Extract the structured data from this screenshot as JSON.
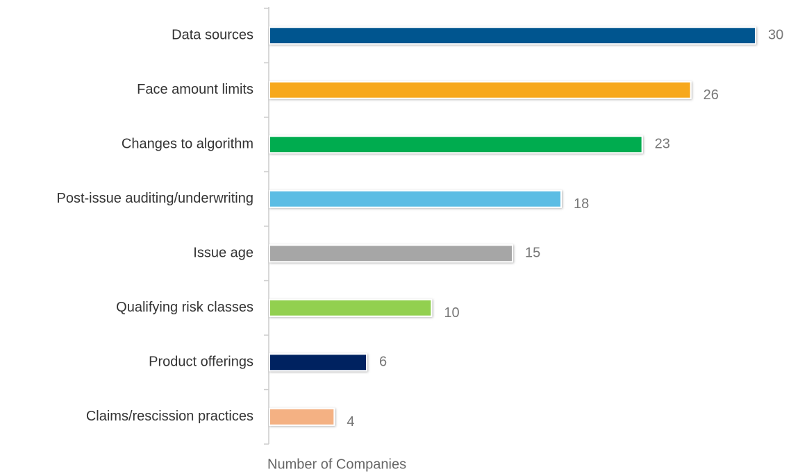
{
  "chart_data": {
    "type": "bar",
    "orientation": "horizontal",
    "x_label": "Number of Companies",
    "categories": [
      "Data sources",
      "Face amount limits",
      "Changes to algorithm",
      "Post-issue auditing/underwriting",
      "Issue age",
      "Qualifying risk classes",
      "Product offerings",
      "Claims/rescission practices"
    ],
    "values": [
      30,
      26,
      23,
      18,
      15,
      10,
      6,
      4
    ],
    "colors": [
      "#00558f",
      "#f7a81b",
      "#00ac4f",
      "#5bbde4",
      "#a6a6a6",
      "#92d050",
      "#002060",
      "#f4b183"
    ],
    "xlim": [
      0,
      30
    ]
  }
}
